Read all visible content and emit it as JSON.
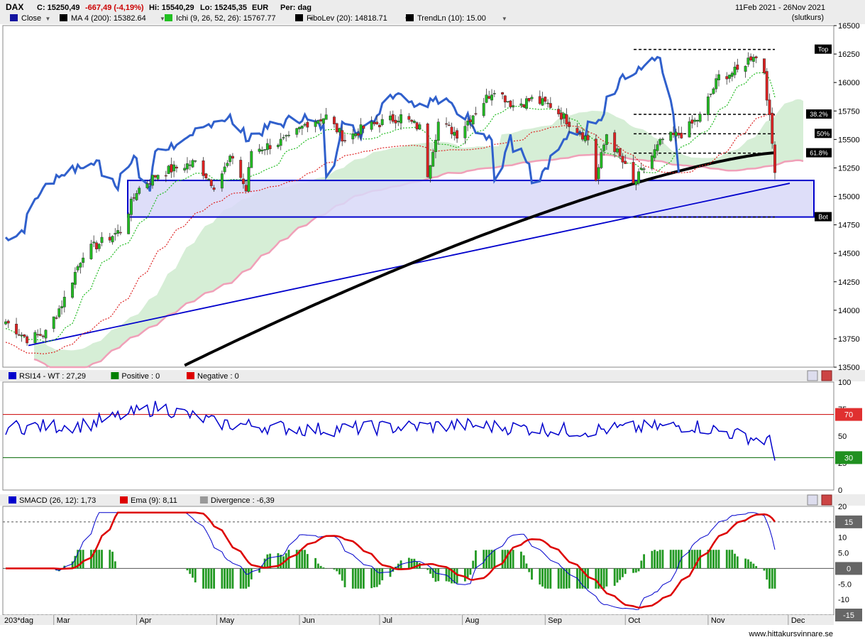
{
  "header": {
    "symbol": "DAX",
    "close": "C: 15250,49",
    "change": "-667,49 (-4,19%)",
    "high": "Hi: 15540,29",
    "low": "Lo: 15245,35",
    "currency": "EUR",
    "period": "Per: dag",
    "date_range": "11Feb 2021 - 26Nov 2021",
    "mode": "(slutkurs)"
  },
  "legend": [
    {
      "label": "Close",
      "color": "#1414a0",
      "dropdown": true
    },
    {
      "label": "MA 4 (200): 15382.64",
      "color": "#000000",
      "dropdown": true
    },
    {
      "label": "Ichi (9, 26, 52, 26): 15767.77",
      "color": "#22c022",
      "dropdown": true
    },
    {
      "label": "FiboLev (20): 14818.71",
      "color": "#000000",
      "dropdown": true
    },
    {
      "label": "TrendLn (10): 15.00",
      "color": "#000000",
      "dropdown": true
    }
  ],
  "fibo_labels": [
    "Top",
    "38.2%",
    "50%",
    "61.8%",
    "Bot"
  ],
  "rsi_panel": {
    "legend": [
      {
        "label": "RSI14 - WT : 27,29",
        "color": "#0000cc"
      },
      {
        "label": "Positive : 0",
        "color": "#008000"
      },
      {
        "label": "Negative : 0",
        "color": "#dd0000"
      }
    ],
    "ticks": [
      "100",
      "75",
      "50",
      "25",
      "0"
    ],
    "levels": [
      "70",
      "30"
    ]
  },
  "macd_panel": {
    "legend": [
      {
        "label": "SMACD (26, 12): 1,73",
        "color": "#0000cc"
      },
      {
        "label": "Ema (9): 8,11",
        "color": "#dd0000"
      },
      {
        "label": "Divergence : -6,39",
        "color": "#999999"
      }
    ],
    "ticks": [
      "20",
      "15",
      "10",
      "5.0",
      "0",
      "-5.0",
      "-10",
      "-15"
    ],
    "levels": [
      "15",
      "0",
      "-15"
    ]
  },
  "footer": {
    "range_label": "203*dag",
    "months": [
      "Mar",
      "Apr",
      "May",
      "Jun",
      "Jul",
      "Aug",
      "Sep",
      "Oct",
      "Nov",
      "Dec"
    ],
    "site": "www.hittakursvinnare.se"
  },
  "colors": {
    "up_candle": "#22bb22",
    "down_candle": "#dd2222",
    "close_line": "#3060cc",
    "ma200": "#000000",
    "ichi_cloud_up": "#c8e8c8",
    "ichi_cloud_down": "#f4c8d4",
    "fibo_box": "#d8d8f8",
    "trend_line": "#0000cc"
  },
  "chart_data": [
    {
      "type": "candlestick",
      "name": "DAX",
      "ylim": [
        13500,
        16500
      ],
      "yticks": [
        16500,
        16250,
        16000,
        15750,
        15500,
        15250,
        15000,
        14750,
        14500,
        14250,
        14000,
        13750,
        13500
      ],
      "x_range": [
        "2021-02-11",
        "2021-11-26"
      ],
      "close_anchors": [
        [
          "2021-02-11",
          13900
        ],
        [
          "2021-02-19",
          13750
        ],
        [
          "2021-02-26",
          13800
        ],
        [
          "2021-03-05",
          14100
        ],
        [
          "2021-03-12",
          14500
        ],
        [
          "2021-03-19",
          14600
        ],
        [
          "2021-03-26",
          14700
        ],
        [
          "2021-04-01",
          15050
        ],
        [
          "2021-04-09",
          15200
        ],
        [
          "2021-04-16",
          15250
        ],
        [
          "2021-04-23",
          15300
        ],
        [
          "2021-04-30",
          15100
        ],
        [
          "2021-05-07",
          15350
        ],
        [
          "2021-05-12",
          15050
        ],
        [
          "2021-05-14",
          15400
        ],
        [
          "2021-05-21",
          15450
        ],
        [
          "2021-05-28",
          15500
        ],
        [
          "2021-06-04",
          15650
        ],
        [
          "2021-06-11",
          15700
        ],
        [
          "2021-06-18",
          15500
        ],
        [
          "2021-06-25",
          15600
        ],
        [
          "2021-07-02",
          15650
        ],
        [
          "2021-07-09",
          15700
        ],
        [
          "2021-07-16",
          15600
        ],
        [
          "2021-07-19",
          15200
        ],
        [
          "2021-07-23",
          15650
        ],
        [
          "2021-07-30",
          15550
        ],
        [
          "2021-08-06",
          15750
        ],
        [
          "2021-08-13",
          15950
        ],
        [
          "2021-08-20",
          15800
        ],
        [
          "2021-08-27",
          15850
        ],
        [
          "2021-09-03",
          15800
        ],
        [
          "2021-09-10",
          15650
        ],
        [
          "2021-09-17",
          15500
        ],
        [
          "2021-09-20",
          15150
        ],
        [
          "2021-09-24",
          15550
        ],
        [
          "2021-09-30",
          15300
        ],
        [
          "2021-10-04",
          15100
        ],
        [
          "2021-10-08",
          15250
        ],
        [
          "2021-10-15",
          15500
        ],
        [
          "2021-10-22",
          15550
        ],
        [
          "2021-10-29",
          15700
        ],
        [
          "2021-11-05",
          16050
        ],
        [
          "2021-11-12",
          16100
        ],
        [
          "2021-11-18",
          16250
        ],
        [
          "2021-11-22",
          16100
        ],
        [
          "2021-11-26",
          15250
        ]
      ],
      "ma200_range": [
        13500,
        15382.64
      ],
      "fibo_levels": {
        "top": 16290,
        "r38_2": 15720,
        "r50": 15550,
        "r61_8": 15380,
        "bot": 14818.71
      }
    },
    {
      "type": "line",
      "name": "RSI14",
      "ylim": [
        0,
        100
      ],
      "levels": [
        70,
        30
      ],
      "anchors": [
        [
          0,
          58
        ],
        [
          20,
          60
        ],
        [
          40,
          77
        ],
        [
          55,
          62
        ],
        [
          80,
          56
        ],
        [
          120,
          60
        ],
        [
          150,
          55
        ],
        [
          180,
          60
        ],
        [
          200,
          45
        ],
        [
          203,
          27
        ]
      ]
    },
    {
      "type": "bar+line",
      "name": "SMACD",
      "ylim": [
        -15,
        20
      ],
      "levels": [
        15,
        0,
        -15
      ]
    }
  ]
}
